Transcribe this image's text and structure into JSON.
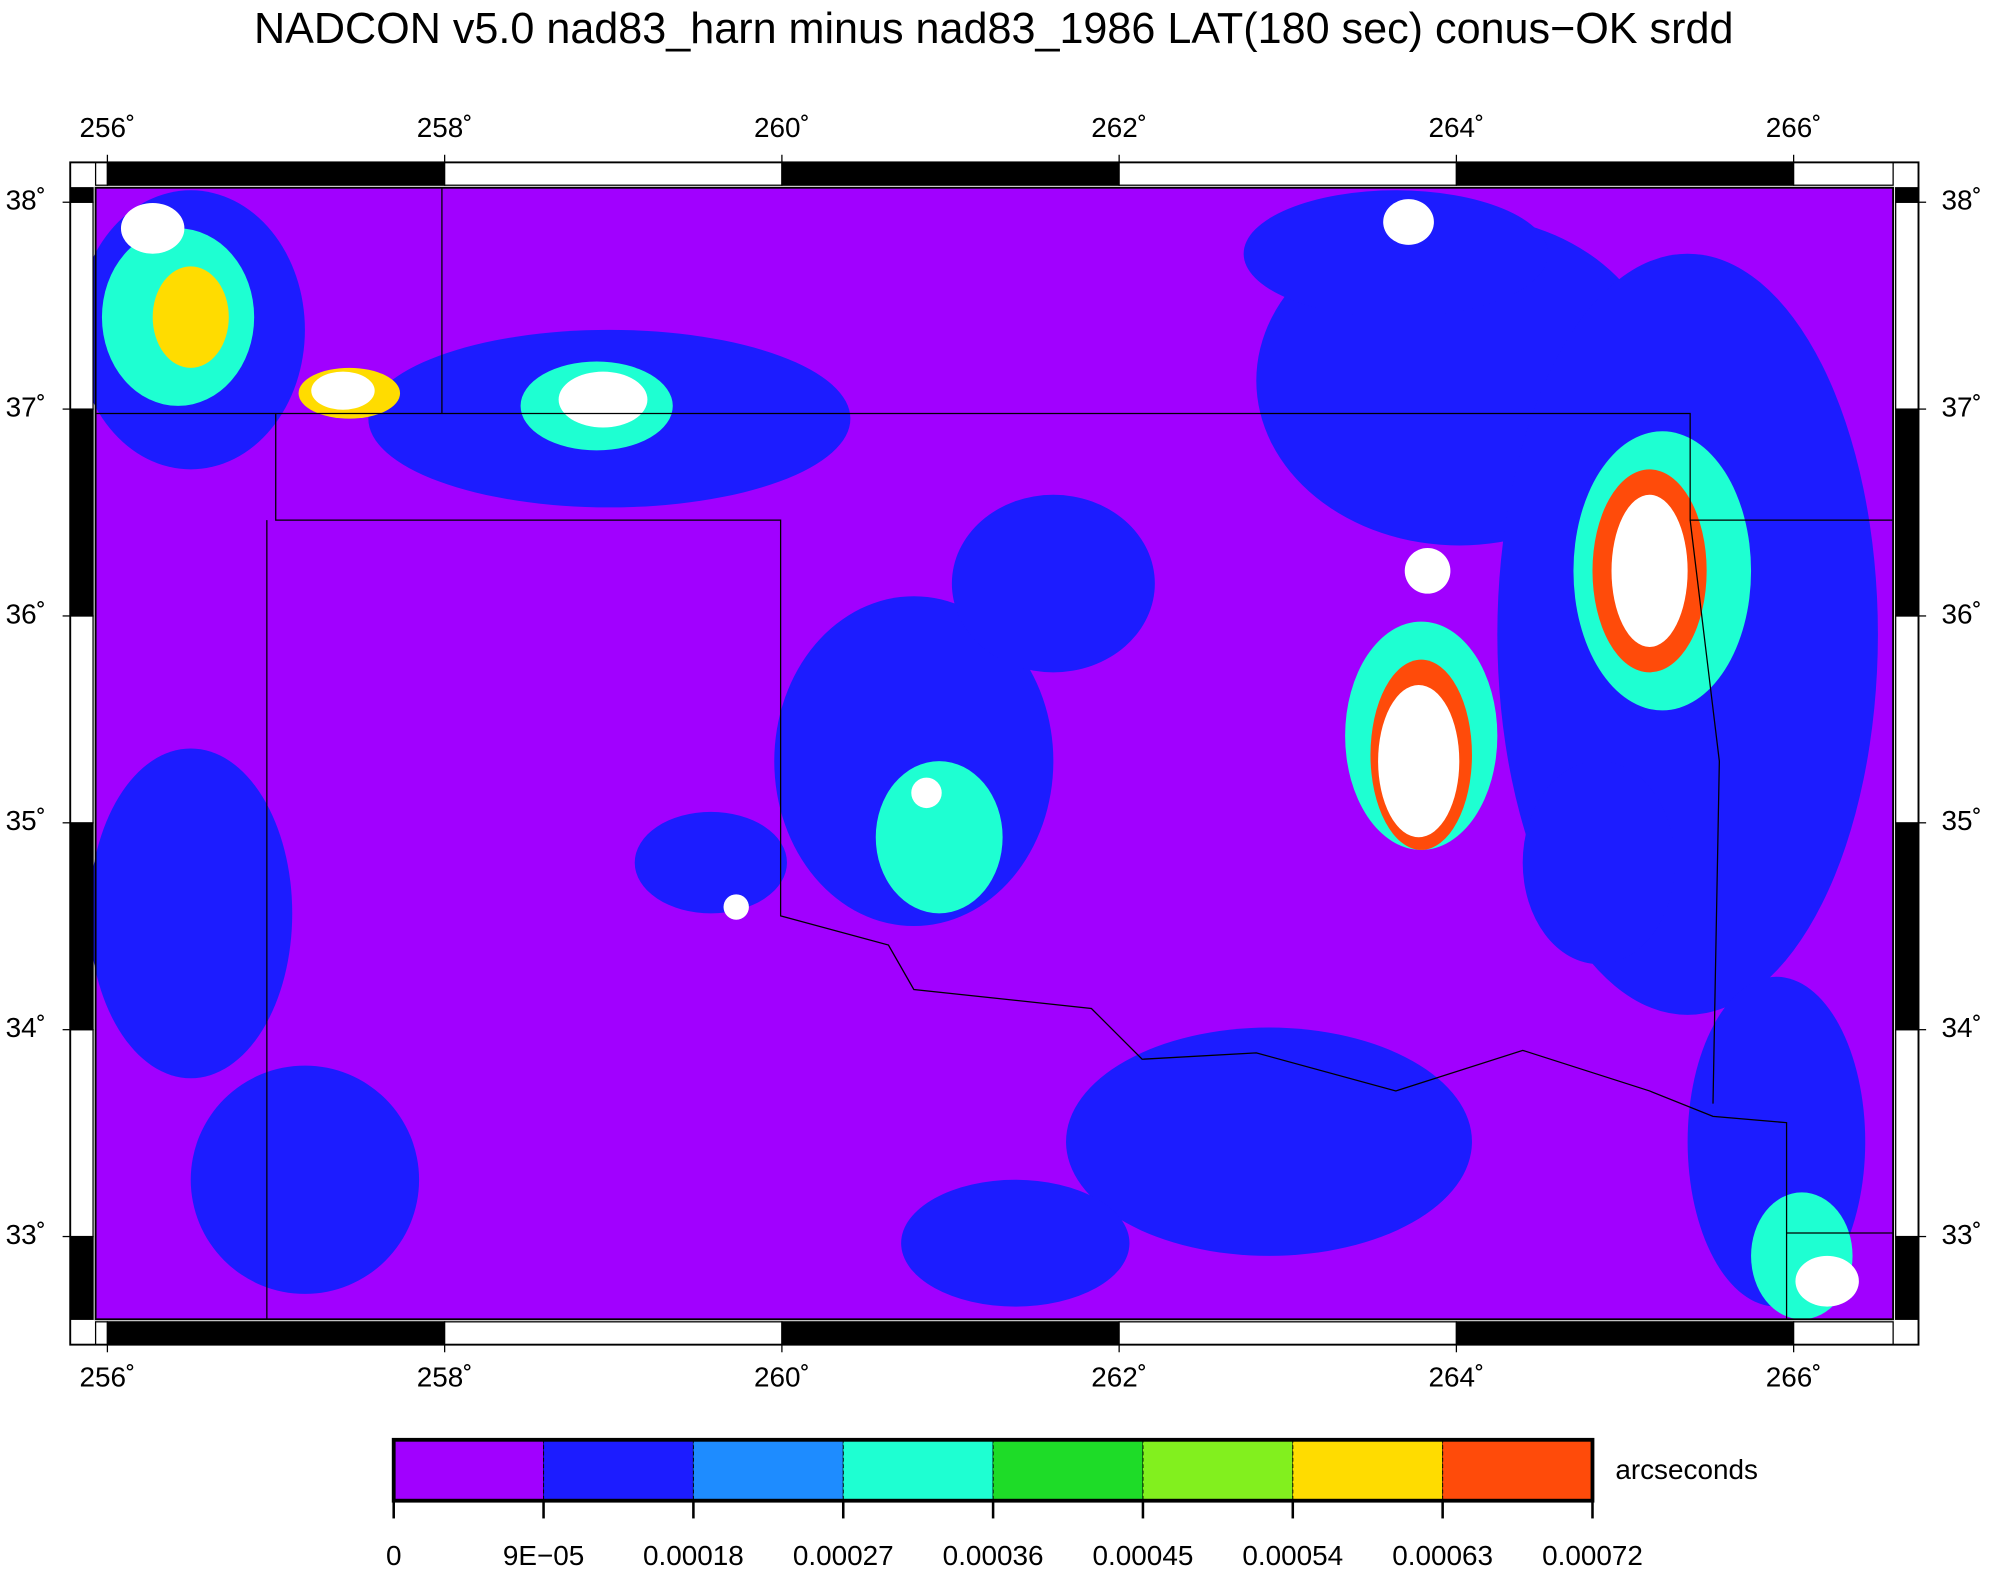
{
  "title": "NADCON v5.0 nad83_harn minus nad83_1986 LAT(180 sec) conus−OK srdd",
  "map": {
    "xlim": [
      255.93,
      266.59
    ],
    "ylim": [
      32.6,
      38.07
    ],
    "xticks": [
      {
        "value": 256,
        "label": "256˚"
      },
      {
        "value": 258,
        "label": "258˚"
      },
      {
        "value": 260,
        "label": "260˚"
      },
      {
        "value": 262,
        "label": "262˚"
      },
      {
        "value": 264,
        "label": "264˚"
      },
      {
        "value": 266,
        "label": "266˚"
      }
    ],
    "yticks": [
      {
        "value": 33,
        "label": "33˚"
      },
      {
        "value": 34,
        "label": "34˚"
      },
      {
        "value": 35,
        "label": "35˚"
      },
      {
        "value": 36,
        "label": "36˚"
      },
      {
        "value": 37,
        "label": "37˚"
      },
      {
        "value": 38,
        "label": "38˚"
      }
    ]
  },
  "colorbar": {
    "unit": "arcseconds",
    "ticks": [
      0,
      {
        "value": 9e-05,
        "label": "9E−05"
      },
      0.00018,
      0.00027,
      0.00036,
      0.00045,
      0.00054,
      0.00063,
      0.00072
    ],
    "colors": [
      "#a100ff",
      "#1c1cff",
      "#1e8cff",
      "#1effd2",
      "#1edc28",
      "#82f01e",
      "#ffdc00",
      "#ff4b0a"
    ]
  }
}
